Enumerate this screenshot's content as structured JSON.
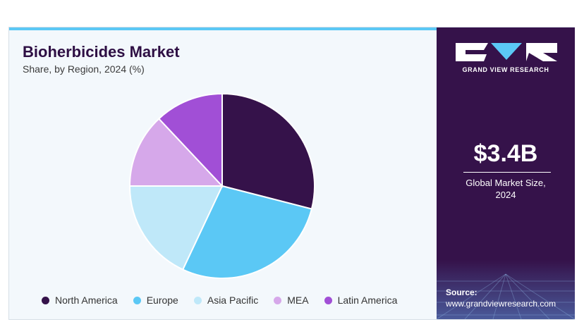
{
  "header": {
    "title": "Bioherbicides Market",
    "subtitle": "Share, by Region, 2024 (%)"
  },
  "brand": {
    "name": "GRAND VIEW RESEARCH",
    "logo_icon": "gvr-logo-icon"
  },
  "summary": {
    "market_size": "$3.4B",
    "market_size_label": "Global Market Size, 2024"
  },
  "source": {
    "label": "Source:",
    "url": "www.grandviewresearch.com"
  },
  "colors": {
    "accent_bar": "#5bc8f5",
    "sidebar_bg": "#35124a"
  },
  "chart_data": {
    "type": "pie",
    "title": "Bioherbicides Market",
    "subtitle": "Share, by Region, 2024 (%)",
    "legend_position": "bottom",
    "start_angle_deg": 0,
    "direction": "clockwise",
    "series": [
      {
        "name": "North America",
        "value": 29,
        "color": "#35124a"
      },
      {
        "name": "Europe",
        "value": 28,
        "color": "#5bc8f5"
      },
      {
        "name": "Asia Pacific",
        "value": 18,
        "color": "#bfe8f9"
      },
      {
        "name": "MEA",
        "value": 13,
        "color": "#d6a8ea"
      },
      {
        "name": "Latin America",
        "value": 12,
        "color": "#a14fd6"
      }
    ]
  }
}
